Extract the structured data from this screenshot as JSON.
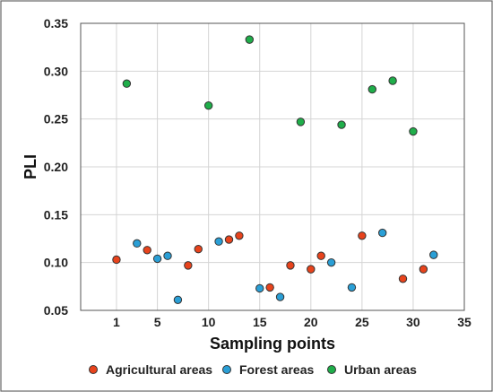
{
  "chart_data": {
    "type": "scatter",
    "xlabel": "Sampling points",
    "ylabel": "PLI",
    "xlim": [
      -2.5,
      35
    ],
    "ylim": [
      0.05,
      0.35
    ],
    "x_ticks": [
      1,
      5,
      10,
      15,
      20,
      25,
      30,
      35
    ],
    "y_ticks": [
      0.05,
      0.1,
      0.15,
      0.2,
      0.25,
      0.3,
      0.35
    ],
    "y_tick_labels": [
      "0.05",
      "0.10",
      "0.15",
      "0.20",
      "0.25",
      "0.30",
      "0.35"
    ],
    "grid": true,
    "legend_position": "bottom",
    "series": [
      {
        "name": "Agricultural areas",
        "color": "#e8431c",
        "points": [
          {
            "x": 1,
            "y": 0.103
          },
          {
            "x": 4,
            "y": 0.113
          },
          {
            "x": 8,
            "y": 0.097
          },
          {
            "x": 9,
            "y": 0.114
          },
          {
            "x": 12,
            "y": 0.124
          },
          {
            "x": 13,
            "y": 0.128
          },
          {
            "x": 16,
            "y": 0.074
          },
          {
            "x": 18,
            "y": 0.097
          },
          {
            "x": 20,
            "y": 0.093
          },
          {
            "x": 21,
            "y": 0.107
          },
          {
            "x": 25,
            "y": 0.128
          },
          {
            "x": 29,
            "y": 0.083
          },
          {
            "x": 31,
            "y": 0.093
          }
        ]
      },
      {
        "name": "Forest areas",
        "color": "#2a9fd6",
        "points": [
          {
            "x": 3,
            "y": 0.12
          },
          {
            "x": 5,
            "y": 0.104
          },
          {
            "x": 6,
            "y": 0.107
          },
          {
            "x": 7,
            "y": 0.061
          },
          {
            "x": 11,
            "y": 0.122
          },
          {
            "x": 15,
            "y": 0.073
          },
          {
            "x": 17,
            "y": 0.064
          },
          {
            "x": 22,
            "y": 0.1
          },
          {
            "x": 24,
            "y": 0.074
          },
          {
            "x": 27,
            "y": 0.131
          },
          {
            "x": 32,
            "y": 0.108
          }
        ]
      },
      {
        "name": "Urban areas",
        "color": "#1fae4a",
        "points": [
          {
            "x": 2,
            "y": 0.287
          },
          {
            "x": 10,
            "y": 0.264
          },
          {
            "x": 14,
            "y": 0.333
          },
          {
            "x": 19,
            "y": 0.247
          },
          {
            "x": 23,
            "y": 0.244
          },
          {
            "x": 26,
            "y": 0.281
          },
          {
            "x": 28,
            "y": 0.29
          },
          {
            "x": 30,
            "y": 0.237
          }
        ]
      }
    ]
  }
}
